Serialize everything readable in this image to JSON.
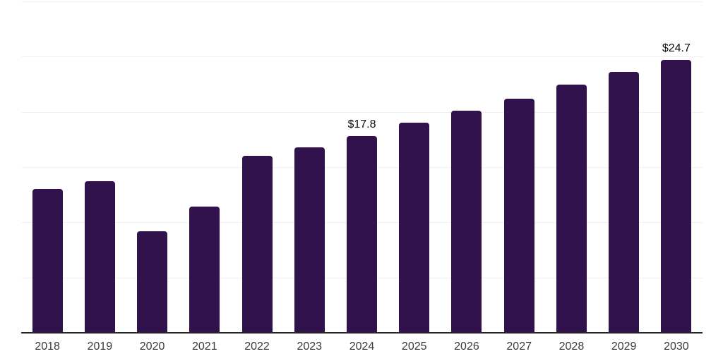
{
  "chart_data": {
    "type": "bar",
    "categories": [
      "2018",
      "2019",
      "2020",
      "2021",
      "2022",
      "2023",
      "2024",
      "2025",
      "2026",
      "2027",
      "2028",
      "2029",
      "2030"
    ],
    "values": [
      13.0,
      13.7,
      9.2,
      11.4,
      16.0,
      16.8,
      17.8,
      19.0,
      20.1,
      21.2,
      22.5,
      23.6,
      24.7
    ],
    "point_labels": [
      null,
      null,
      null,
      null,
      null,
      null,
      "$17.8",
      null,
      null,
      null,
      null,
      null,
      "$24.7"
    ],
    "ylim": [
      0,
      30
    ],
    "gridline_step": 5,
    "grid": true,
    "legend": false,
    "colors": {
      "bar": "#32124d",
      "gridline": "#f0f0f0",
      "axis_line": "#262626",
      "tick_label": "#3a3a3a",
      "value_label": "#0d0d0d",
      "background": "#ffffff"
    }
  }
}
